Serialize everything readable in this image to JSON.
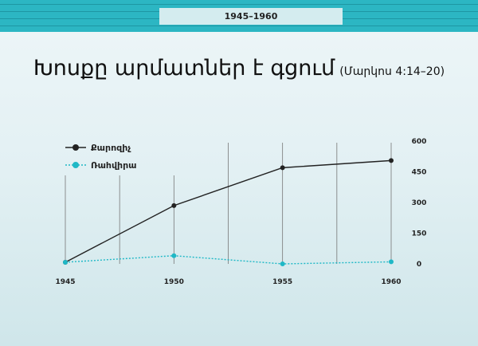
{
  "header": {
    "period": "1945–1960"
  },
  "title": {
    "main": "Խոսքը արմատներ է գցում",
    "reference": "(Մարկոս 4:14–20)"
  },
  "colors": {
    "band": "#2cb6c3",
    "series_1": "#222222",
    "series_2": "#1fb8c6"
  },
  "chart_data": {
    "type": "line",
    "x": [
      1945,
      1950,
      1955,
      1960
    ],
    "x_ticks": [
      "1945",
      "1950",
      "1955",
      "1960"
    ],
    "y_ticks": [
      "0",
      "150",
      "300",
      "450",
      "600"
    ],
    "ylim": [
      0,
      600
    ],
    "y_axis_side": "right",
    "grid": "vertical",
    "legend_position": "top-left",
    "series": [
      {
        "name": "Քարոզիչ",
        "style": "solid",
        "values": [
          8,
          285,
          470,
          505
        ]
      },
      {
        "name": "Ռահվիրա",
        "style": "dotted",
        "values": [
          8,
          40,
          0,
          10
        ]
      }
    ]
  }
}
